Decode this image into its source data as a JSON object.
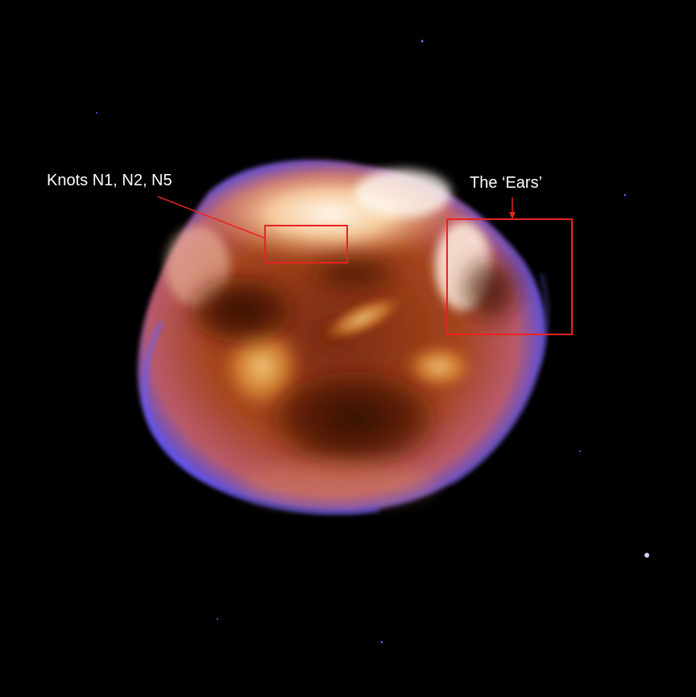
{
  "annotations": {
    "knots_label": "Knots N1, N2, N5",
    "ears_label": "The ‘Ears’"
  },
  "colors": {
    "background": "#000000",
    "annotation_red": "#e8231f",
    "label_text": "#ffffff",
    "remnant_core": "#fff6e8",
    "remnant_warm": "#f0a040",
    "remnant_dark": "#4a1408",
    "remnant_rim": "#6a5cff"
  }
}
